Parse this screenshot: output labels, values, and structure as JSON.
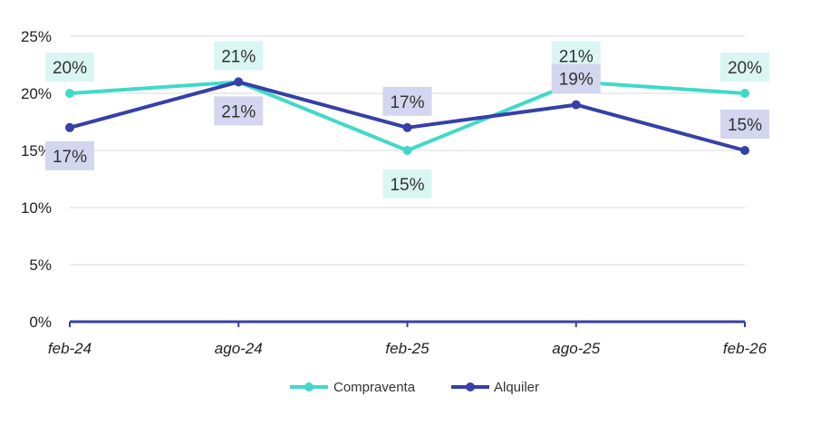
{
  "chart_data": {
    "type": "line",
    "categories": [
      "feb-24",
      "ago-24",
      "feb-25",
      "ago-25",
      "feb-26"
    ],
    "series": [
      {
        "name": "Compraventa",
        "values": [
          20,
          21,
          15,
          21,
          20
        ],
        "labels": [
          "20%",
          "21%",
          "15%",
          "21%",
          "20%"
        ],
        "color": "#40d9c8",
        "label_bg": "#d9f6f2"
      },
      {
        "name": "Alquiler",
        "values": [
          17,
          21,
          17,
          19,
          15
        ],
        "labels": [
          "17%",
          "21%",
          "17%",
          "19%",
          "15%"
        ],
        "color": "#3540a8",
        "label_bg": "#d3d6ee"
      }
    ],
    "y_ticks": [
      "0%",
      "5%",
      "10%",
      "15%",
      "20%",
      "25%"
    ],
    "ylim": [
      0,
      25
    ],
    "grid": true,
    "legend_position": "bottom",
    "axis_color": "#3540a8",
    "grid_color": "#d9d9d9"
  }
}
